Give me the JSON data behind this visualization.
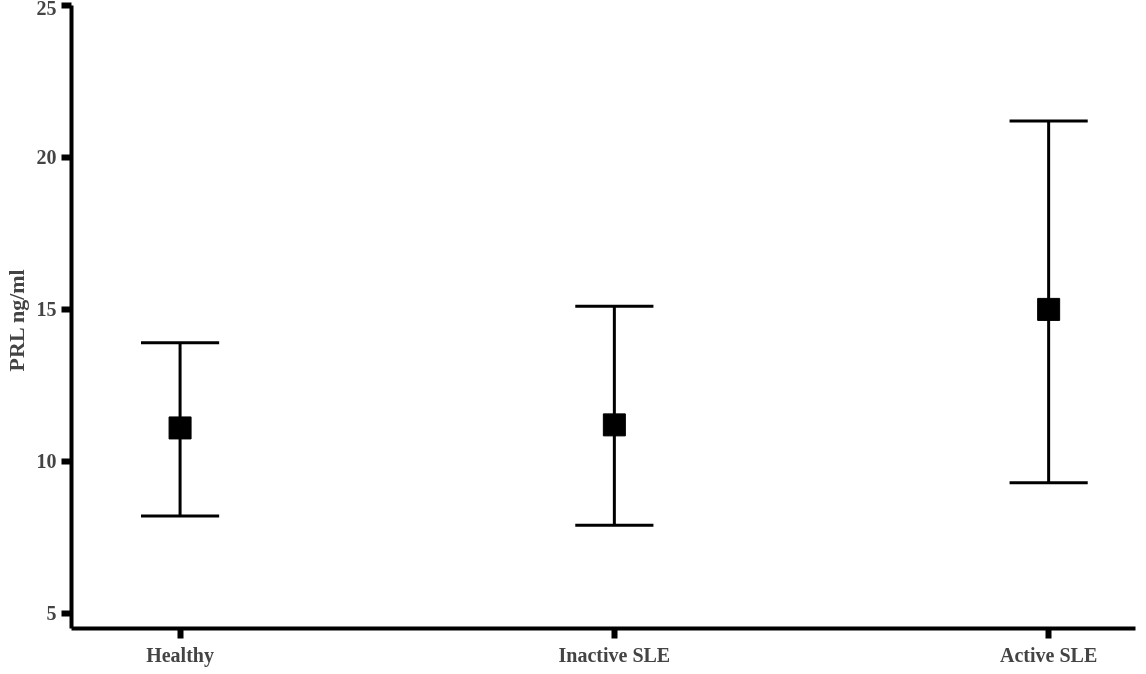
{
  "chart_data": {
    "type": "scatter",
    "ylabel": "PRL  ng/ml",
    "categories": [
      "Healthy",
      "Inactive SLE",
      "Active SLE"
    ],
    "series": [
      {
        "color": "#000000",
        "values": [
          11.1,
          11.2,
          15.0
        ],
        "errors": [
          [
            8.2,
            13.9
          ],
          [
            7.9,
            15.1
          ],
          [
            9.3,
            21.2
          ]
        ]
      }
    ],
    "ylim": [
      4.5,
      25
    ],
    "yticks": [
      5,
      10,
      15,
      20,
      25
    ],
    "marker": "square",
    "grid": false
  }
}
